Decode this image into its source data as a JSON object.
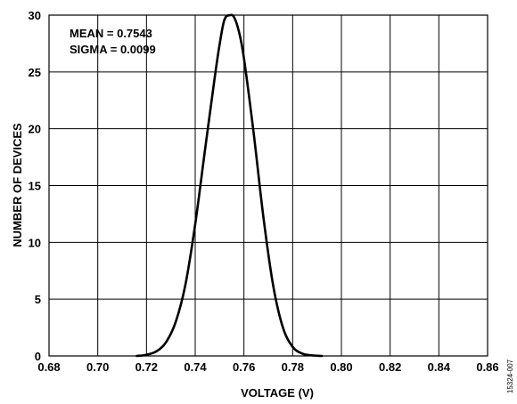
{
  "chart_data": {
    "type": "line",
    "title": "",
    "xlabel": "VOLTAGE (V)",
    "ylabel": "NUMBER OF DEVICES",
    "xlim": [
      0.68,
      0.86
    ],
    "ylim": [
      0,
      30
    ],
    "xticks": [
      0.68,
      0.7,
      0.72,
      0.74,
      0.76,
      0.78,
      0.8,
      0.82,
      0.84,
      0.86
    ],
    "xtick_labels": [
      "0.68",
      "0.70",
      "0.72",
      "0.74",
      "0.76",
      "0.78",
      "0.80",
      "0.82",
      "0.84",
      "0.86"
    ],
    "yticks": [
      0,
      5,
      10,
      15,
      20,
      25,
      30
    ],
    "ytick_labels": [
      "0",
      "5",
      "10",
      "15",
      "20",
      "25",
      "30"
    ],
    "grid": true,
    "annotations": [
      "MEAN = 0.7543",
      "SIGMA = 0.0099"
    ],
    "series": [
      {
        "x": [
          0.716,
          0.72,
          0.724,
          0.728,
          0.732,
          0.736,
          0.74,
          0.744,
          0.748,
          0.75,
          0.752,
          0.7543,
          0.756,
          0.758,
          0.76,
          0.764,
          0.768,
          0.772,
          0.776,
          0.78,
          0.784,
          0.788,
          0.792
        ],
        "y": [
          0.0,
          0.1,
          0.4,
          1.2,
          3.0,
          6.3,
          11.6,
          18.1,
          24.5,
          27.4,
          29.6,
          30.0,
          29.8,
          28.5,
          26.2,
          19.6,
          12.2,
          6.2,
          2.5,
          0.8,
          0.2,
          0.05,
          0.0
        ]
      }
    ]
  },
  "figure_code": "15324-007"
}
